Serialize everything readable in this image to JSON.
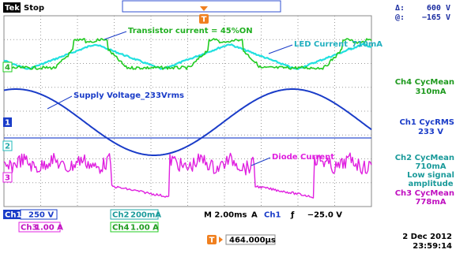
{
  "header": {
    "brand": "Tek",
    "status": "Stop",
    "trigger_marker": "T",
    "delta_label": "Δ:",
    "delta_value": "600 V",
    "at_label": "@:",
    "at_value": "−165 V"
  },
  "annotations": [
    "Transistor current = 45%ON",
    "LED Current_710mA",
    "Supply Voltage_233Vrms",
    "Diode Current"
  ],
  "channel_markers": [
    "4",
    "1",
    "2",
    "3"
  ],
  "measurements": [
    {
      "label": "Ch4 CycMean",
      "value": "310mA"
    },
    {
      "label": "Ch1 CycRMS",
      "value": "233 V"
    },
    {
      "label": "Ch2 CycMean",
      "value": "710mA",
      "notes": [
        "Low signal",
        "amplitude"
      ]
    },
    {
      "label": "Ch3 CycMean",
      "value": "778mA"
    }
  ],
  "status_bar": {
    "channels": [
      {
        "name": "Ch1",
        "scale": "250 V"
      },
      {
        "name": "Ch2",
        "scale": "200mA"
      },
      {
        "name": "Ch3",
        "scale": "1.00 A"
      },
      {
        "name": "Ch4",
        "scale": "1.00 A"
      }
    ],
    "timebase": "M 2.00ms",
    "trigger_mode": "A",
    "trigger_source": "Ch1",
    "trigger_slope": "ƒ",
    "trigger_level": "−25.0 V",
    "horizontal_marker": "T",
    "horizontal_position": "464.000µs",
    "date": "2 Dec 2012",
    "time": "23:59:14"
  }
}
